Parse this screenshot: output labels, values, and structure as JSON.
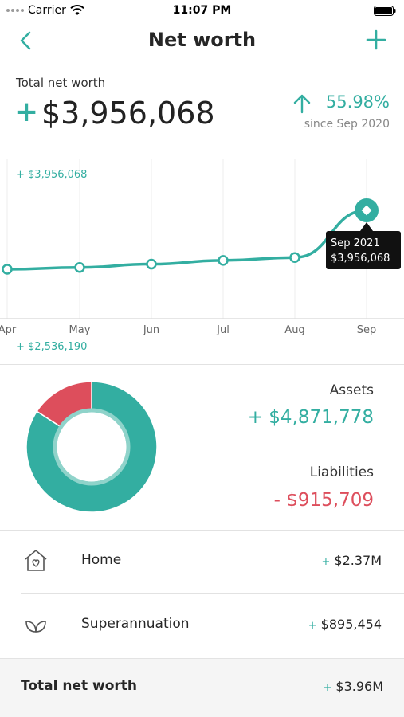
{
  "status_bar": {
    "carrier": "Carrier",
    "time": "11:07 PM"
  },
  "nav": {
    "title": "Net worth",
    "back_icon": "chevron-left-icon",
    "add_icon": "plus-icon"
  },
  "summary": {
    "label": "Total net worth",
    "sign": "+",
    "value": "$3,956,068",
    "change_pct": "55.98%",
    "since": "since Sep 2020",
    "change_direction": "up"
  },
  "chart_data": {
    "type": "line",
    "categories": [
      "Apr",
      "May",
      "Jun",
      "Jul",
      "Aug",
      "Sep"
    ],
    "series": [
      {
        "values": [
          2536190,
          2580000,
          2660000,
          2750000,
          2820000,
          3956068
        ]
      }
    ],
    "ylim": [
      2536190,
      3956068
    ],
    "max_label": "+ $3,956,068",
    "min_label": "+ $2,536,190",
    "tooltip": {
      "title": "Sep 2021",
      "value": "$3,956,068"
    },
    "grid": true,
    "color": "#33aea1"
  },
  "breakdown": {
    "assets_label": "Assets",
    "assets_value": "+ $4,871,778",
    "liabilities_label": "Liabilities",
    "liabilities_value": "- $915,709",
    "assets_amount": 4871778,
    "liabilities_amount": 915709,
    "assets_color": "#33aea1",
    "liabilities_color": "#dd4e5c"
  },
  "accounts": [
    {
      "icon": "house-heart-icon",
      "label": "Home",
      "sign": "+",
      "value": "$2.37M"
    },
    {
      "icon": "leaf-icon",
      "label": "Superannuation",
      "sign": "+",
      "value": "$895,454"
    }
  ],
  "total": {
    "label": "Total net worth",
    "sign": "+",
    "value": "$3.96M"
  }
}
